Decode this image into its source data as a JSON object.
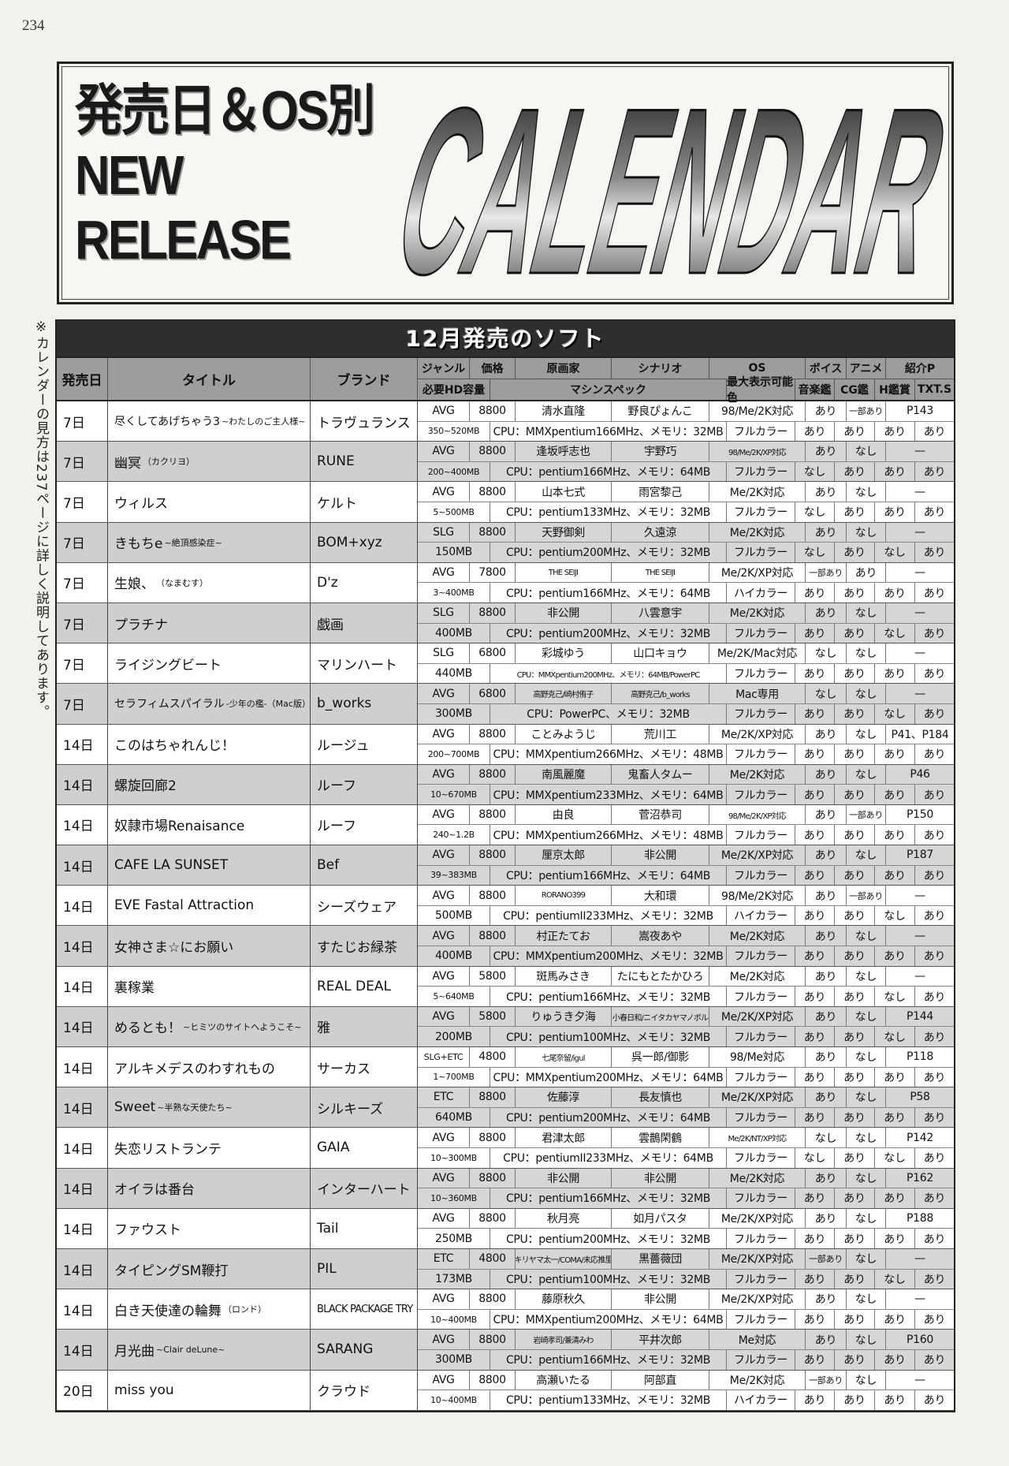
{
  "page_number": "234",
  "hero": {
    "line1": "発売日＆OS別",
    "line2": "NEW",
    "line3": "RELEASE",
    "big": "CALENDAR"
  },
  "side_note": "※カレンダーの見方は237ページに詳しく説明してあります。",
  "table": {
    "title": "12月発売のソフト",
    "headers": {
      "date": "発売日",
      "title": "タイトル",
      "brand": "ブランド",
      "genre": "ジャンル",
      "price": "価格",
      "artist": "原画家",
      "scenario": "シナリオ",
      "os": "OS",
      "voice": "ボイス",
      "anime": "アニメ",
      "intro": "紹介P",
      "hd": "必要HD容量",
      "spec": "マシンスペック",
      "color": "最大表示可能色",
      "music": "音楽鑑",
      "cg": "CG鑑",
      "h": "H鑑賞",
      "txt": "TXT.S"
    },
    "rows": [
      {
        "date": "7日",
        "title": "尽くしてあげちゃう3",
        "sub": "~わたしのご主人様~",
        "brand": "トラヴュランス",
        "genre": "AVG",
        "price": "8800",
        "artist": "清水直隆",
        "scenario": "野良ぴょんこ",
        "os": "98/Me/2K対応",
        "voice": "あり",
        "anime": "一部あり",
        "intro": "P143",
        "hd": "350~520MB",
        "spec": "CPU：MMXpentium166MHz、メモリ：32MB",
        "color": "フルカラー",
        "music": "あり",
        "cg": "あり",
        "h": "あり",
        "txt": "あり"
      },
      {
        "date": "7日",
        "title": "幽冥",
        "sub": "（カクリヨ）",
        "brand": "RUNE",
        "genre": "AVG",
        "price": "8800",
        "artist": "逢坂呼志也",
        "scenario": "宇野巧",
        "os": "98/Me/2K/XP対応",
        "voice": "あり",
        "anime": "なし",
        "intro": "—",
        "hd": "200~400MB",
        "spec": "CPU：pentium166MHz、メモリ：64MB",
        "color": "フルカラー",
        "music": "なし",
        "cg": "あり",
        "h": "あり",
        "txt": "あり"
      },
      {
        "date": "7日",
        "title": "ウィルス",
        "sub": "",
        "brand": "ケルト",
        "genre": "AVG",
        "price": "8800",
        "artist": "山本七式",
        "scenario": "雨宮黎己",
        "os": "Me/2K対応",
        "voice": "あり",
        "anime": "なし",
        "intro": "—",
        "hd": "5~500MB",
        "spec": "CPU：pentium133MHz、メモリ：32MB",
        "color": "フルカラー",
        "music": "なし",
        "cg": "あり",
        "h": "あり",
        "txt": "あり"
      },
      {
        "date": "7日",
        "title": "きもちe",
        "sub": "~絶頂感染症~",
        "brand": "BOM+xyz",
        "genre": "SLG",
        "price": "8800",
        "artist": "天野御剣",
        "scenario": "久遠涼",
        "os": "Me/2K対応",
        "voice": "あり",
        "anime": "なし",
        "intro": "—",
        "hd": "150MB",
        "spec": "CPU：pentium200MHz、メモリ：32MB",
        "color": "フルカラー",
        "music": "なし",
        "cg": "あり",
        "h": "なし",
        "txt": "あり"
      },
      {
        "date": "7日",
        "title": "生娘、",
        "sub": "（なまむす）",
        "brand": "D'z",
        "genre": "AVG",
        "price": "7800",
        "artist": "THE SEIJI",
        "scenario": "THE SEIJI",
        "os": "Me/2K/XP対応",
        "voice": "一部あり",
        "anime": "あり",
        "intro": "—",
        "hd": "3~400MB",
        "spec": "CPU：pentium166MHz、メモリ：64MB",
        "color": "ハイカラー",
        "music": "あり",
        "cg": "あり",
        "h": "あり",
        "txt": "あり"
      },
      {
        "date": "7日",
        "title": "プラチナ",
        "sub": "",
        "brand": "戯画",
        "genre": "SLG",
        "price": "8800",
        "artist": "非公開",
        "scenario": "八雲意宇",
        "os": "Me/2K対応",
        "voice": "あり",
        "anime": "なし",
        "intro": "—",
        "hd": "400MB",
        "spec": "CPU：pentium200MHz、メモリ：32MB",
        "color": "フルカラー",
        "music": "あり",
        "cg": "あり",
        "h": "なし",
        "txt": "あり"
      },
      {
        "date": "7日",
        "title": "ライジングビート",
        "sub": "",
        "brand": "マリンハート",
        "genre": "SLG",
        "price": "6800",
        "artist": "彩城ゆう",
        "scenario": "山口キョウ",
        "os": "Me/2K/Mac対応",
        "voice": "なし",
        "anime": "なし",
        "intro": "—",
        "hd": "440MB",
        "spec": "CPU：MMXpentium200MHz、メモリ：64MB/PowerPC",
        "color": "フルカラー",
        "music": "あり",
        "cg": "あり",
        "h": "あり",
        "txt": "あり"
      },
      {
        "date": "7日",
        "title": "セラフィムスパイラル",
        "sub": "-少年の檻-（Mac版）（一般）",
        "brand": "b_works",
        "genre": "AVG",
        "price": "6800",
        "artist": "高野克己/崎村侑子",
        "scenario": "高野克己/b_works",
        "os": "Mac専用",
        "voice": "なし",
        "anime": "なし",
        "intro": "—",
        "hd": "300MB",
        "spec": "CPU：PowerPC、メモリ：32MB",
        "color": "フルカラー",
        "music": "あり",
        "cg": "あり",
        "h": "なし",
        "txt": "あり"
      },
      {
        "date": "14日",
        "title": "このはちゃれんじ！",
        "sub": "",
        "brand": "ルージュ",
        "genre": "AVG",
        "price": "8800",
        "artist": "ことみようじ",
        "scenario": "荒川工",
        "os": "Me/2K/XP対応",
        "voice": "あり",
        "anime": "なし",
        "intro": "P41、P184",
        "hd": "200~700MB",
        "spec": "CPU：MMXpentium266MHz、メモリ：48MB",
        "color": "フルカラー",
        "music": "あり",
        "cg": "あり",
        "h": "あり",
        "txt": "あり"
      },
      {
        "date": "14日",
        "title": "螺旋回廊2",
        "sub": "",
        "brand": "ルーフ",
        "genre": "AVG",
        "price": "8800",
        "artist": "南風麗魔",
        "scenario": "鬼畜人タムー",
        "os": "Me/2K対応",
        "voice": "あり",
        "anime": "なし",
        "intro": "P46",
        "hd": "10~670MB",
        "spec": "CPU：MMXpentium233MHz、メモリ：64MB",
        "color": "フルカラー",
        "music": "あり",
        "cg": "あり",
        "h": "あり",
        "txt": "あり"
      },
      {
        "date": "14日",
        "title": "奴隷市場Renaisance",
        "sub": "",
        "brand": "ルーフ",
        "genre": "AVG",
        "price": "8800",
        "artist": "由良",
        "scenario": "菅沼恭司",
        "os": "98/Me/2K/XP対応",
        "voice": "あり",
        "anime": "一部あり",
        "intro": "P150",
        "hd": "240~1.2B",
        "spec": "CPU：MMXpentium266MHz、メモリ：48MB",
        "color": "フルカラー",
        "music": "あり",
        "cg": "あり",
        "h": "あり",
        "txt": "あり"
      },
      {
        "date": "14日",
        "title": "CAFE LA SUNSET",
        "sub": "",
        "brand": "Bef",
        "genre": "AVG",
        "price": "8800",
        "artist": "厘京太郎",
        "scenario": "非公開",
        "os": "Me/2K/XP対応",
        "voice": "あり",
        "anime": "なし",
        "intro": "P187",
        "hd": "39~383MB",
        "spec": "CPU：pentium166MHz、メモリ：64MB",
        "color": "フルカラー",
        "music": "あり",
        "cg": "あり",
        "h": "あり",
        "txt": "あり"
      },
      {
        "date": "14日",
        "title": "EVE Fastal Attraction",
        "sub": "",
        "brand": "シーズウェア",
        "genre": "AVG",
        "price": "8800",
        "artist": "RORANO399",
        "scenario": "大和環",
        "os": "98/Me/2K対応",
        "voice": "あり",
        "anime": "一部あり",
        "intro": "—",
        "hd": "500MB",
        "spec": "CPU：pentiumII233MHz、メモリ：32MB",
        "color": "ハイカラー",
        "music": "あり",
        "cg": "あり",
        "h": "なし",
        "txt": "あり"
      },
      {
        "date": "14日",
        "title": "女神さま☆にお願い",
        "sub": "",
        "brand": "すたじお緑茶",
        "genre": "AVG",
        "price": "8800",
        "artist": "村正たてお",
        "scenario": "嵩夜あや",
        "os": "Me/2K対応",
        "voice": "あり",
        "anime": "なし",
        "intro": "—",
        "hd": "400MB",
        "spec": "CPU：MMXpentium200MHz、メモリ：32MB",
        "color": "フルカラー",
        "music": "あり",
        "cg": "あり",
        "h": "あり",
        "txt": "あり"
      },
      {
        "date": "14日",
        "title": "裏稼業",
        "sub": "",
        "brand": "REAL DEAL",
        "genre": "AVG",
        "price": "5800",
        "artist": "斑馬みさき",
        "scenario": "たにもとたかひろ",
        "os": "Me/2K対応",
        "voice": "あり",
        "anime": "なし",
        "intro": "—",
        "hd": "5~640MB",
        "spec": "CPU：pentium166MHz、メモリ：32MB",
        "color": "フルカラー",
        "music": "あり",
        "cg": "あり",
        "h": "なし",
        "txt": "あり"
      },
      {
        "date": "14日",
        "title": "めるとも！",
        "sub": "~ヒミツのサイトへようこそ~",
        "brand": "雅",
        "genre": "AVG",
        "price": "5800",
        "artist": "りゅうき夕海",
        "scenario": "小春日和/ニイタカヤマノボル",
        "os": "Me/2K/XP対応",
        "voice": "あり",
        "anime": "なし",
        "intro": "P144",
        "hd": "200MB",
        "spec": "CPU：pentium100MHz、メモリ：32MB",
        "color": "フルカラー",
        "music": "あり",
        "cg": "あり",
        "h": "なし",
        "txt": "あり"
      },
      {
        "date": "14日",
        "title": "アルキメデスのわすれもの",
        "sub": "",
        "brand": "サーカス",
        "genre": "SLG+ETC",
        "price": "4800",
        "artist": "七尾奈留/igul",
        "scenario": "呉一郎/御影",
        "os": "98/Me対応",
        "voice": "あり",
        "anime": "なし",
        "intro": "P118",
        "hd": "1~700MB",
        "spec": "CPU：MMXpentium200MHz、メモリ：64MB",
        "color": "フルカラー",
        "music": "あり",
        "cg": "あり",
        "h": "あり",
        "txt": "あり"
      },
      {
        "date": "14日",
        "title": "Sweet",
        "sub": "~半熟な天使たち~",
        "brand": "シルキーズ",
        "genre": "ETC",
        "price": "8800",
        "artist": "佐藤淳",
        "scenario": "長友慎也",
        "os": "Me/2K/XP対応",
        "voice": "あり",
        "anime": "なし",
        "intro": "P58",
        "hd": "640MB",
        "spec": "CPU：pentium200MHz、メモリ：64MB",
        "color": "フルカラー",
        "music": "あり",
        "cg": "あり",
        "h": "あり",
        "txt": "あり"
      },
      {
        "date": "14日",
        "title": "失恋リストランテ",
        "sub": "",
        "brand": "GAIA",
        "genre": "AVG",
        "price": "8800",
        "artist": "君津太郎",
        "scenario": "雲鵲閑鶴",
        "os": "Me/2K/NT/XP対応",
        "voice": "なし",
        "anime": "なし",
        "intro": "P142",
        "hd": "10~300MB",
        "spec": "CPU：pentiumII233MHz、メモリ：64MB",
        "color": "フルカラー",
        "music": "なし",
        "cg": "あり",
        "h": "なし",
        "txt": "あり"
      },
      {
        "date": "14日",
        "title": "オイラは番台",
        "sub": "",
        "brand": "インターハート",
        "genre": "AVG",
        "price": "8800",
        "artist": "非公開",
        "scenario": "非公開",
        "os": "Me/2K対応",
        "voice": "あり",
        "anime": "なし",
        "intro": "P162",
        "hd": "10~360MB",
        "spec": "CPU：pentium166MHz、メモリ：32MB",
        "color": "フルカラー",
        "music": "あり",
        "cg": "あり",
        "h": "あり",
        "txt": "あり"
      },
      {
        "date": "14日",
        "title": "ファウスト",
        "sub": "",
        "brand": "Tail",
        "genre": "AVG",
        "price": "8800",
        "artist": "秋月亮",
        "scenario": "如月パスタ",
        "os": "Me/2K/XP対応",
        "voice": "あり",
        "anime": "なし",
        "intro": "P188",
        "hd": "250MB",
        "spec": "CPU：pentium200MHz、メモリ：32MB",
        "color": "フルカラー",
        "music": "あり",
        "cg": "あり",
        "h": "あり",
        "txt": "あり"
      },
      {
        "date": "14日",
        "title": "タイピングSM鞭打",
        "sub": "",
        "brand": "PIL",
        "genre": "ETC",
        "price": "4800",
        "artist": "キリヤマ太一/COMA/未応推里",
        "scenario": "黒薔薇団",
        "os": "Me/2K/XP対応",
        "voice": "一部あり",
        "anime": "なし",
        "intro": "—",
        "hd": "173MB",
        "spec": "CPU：pentium100MHz、メモリ：32MB",
        "color": "フルカラー",
        "music": "あり",
        "cg": "あり",
        "h": "なし",
        "txt": "あり"
      },
      {
        "date": "14日",
        "title": "白き天使達の輪舞",
        "sub": "（ロンド）",
        "brand": "BLACK PACKAGE TRY",
        "genre": "AVG",
        "price": "8800",
        "artist": "藤原秋久",
        "scenario": "非公開",
        "os": "Me/2K/XP対応",
        "voice": "あり",
        "anime": "なし",
        "intro": "—",
        "hd": "10~400MB",
        "spec": "CPU：MMXpentium200MHz、メモリ：64MB",
        "color": "フルカラー",
        "music": "あり",
        "cg": "あり",
        "h": "あり",
        "txt": "あり"
      },
      {
        "date": "14日",
        "title": "月光曲",
        "sub": "~Clair deLune~",
        "brand": "SARANG",
        "genre": "AVG",
        "price": "8800",
        "artist": "岩崎孝司/兼清みわ",
        "scenario": "平井次郎",
        "os": "Me対応",
        "voice": "あり",
        "anime": "なし",
        "intro": "P160",
        "hd": "300MB",
        "spec": "CPU：pentium166MHz、メモリ：32MB",
        "color": "フルカラー",
        "music": "あり",
        "cg": "あり",
        "h": "あり",
        "txt": "あり"
      },
      {
        "date": "20日",
        "title": "miss you",
        "sub": "",
        "brand": "クラウド",
        "genre": "AVG",
        "price": "8800",
        "artist": "高瀬いたる",
        "scenario": "阿部直",
        "os": "Me/2K対応",
        "voice": "一部あり",
        "anime": "なし",
        "intro": "—",
        "hd": "10~400MB",
        "spec": "CPU：pentium133MHz、メモリ：32MB",
        "color": "ハイカラー",
        "music": "あり",
        "cg": "あり",
        "h": "あり",
        "txt": "あり"
      }
    ]
  }
}
